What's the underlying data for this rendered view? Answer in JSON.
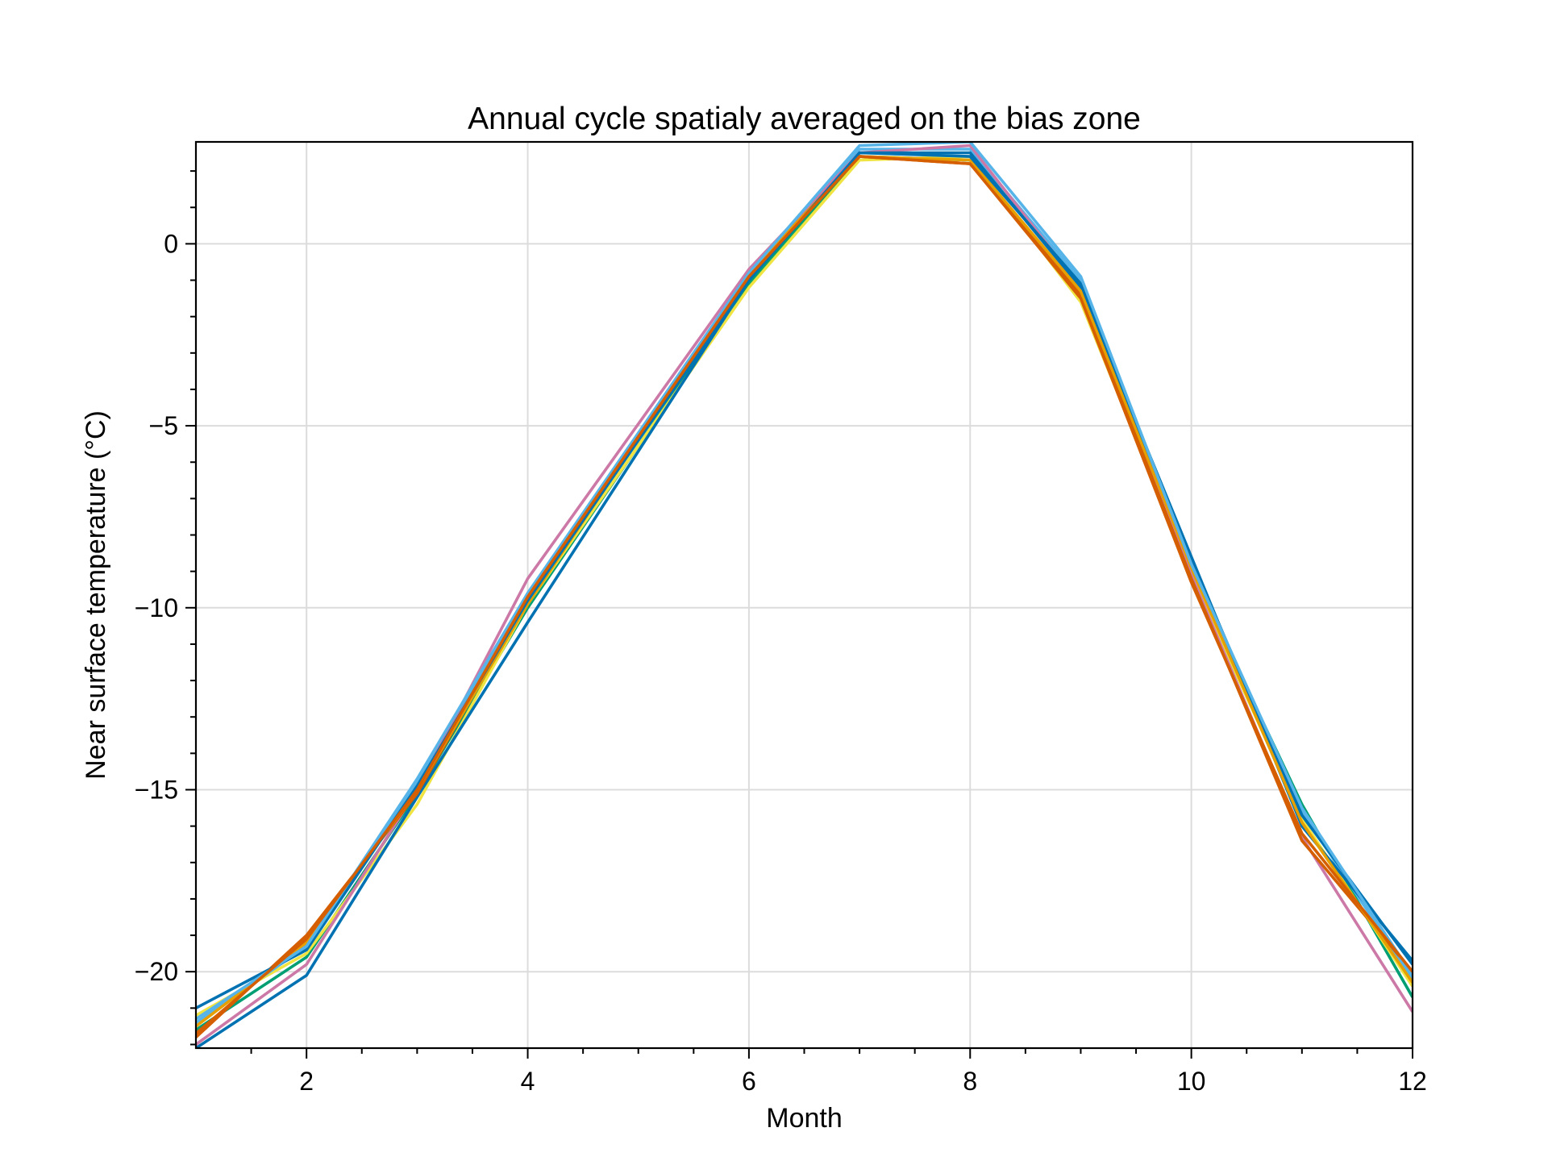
{
  "chart_data": {
    "type": "line",
    "title": "Annual cycle spatialy averaged on the bias zone",
    "xlabel": "Month",
    "ylabel": "Near surface temperature (°C)",
    "xlim": [
      1,
      12
    ],
    "ylim": [
      -22.1,
      2.8
    ],
    "xticks": [
      2,
      4,
      6,
      8,
      10,
      12
    ],
    "xtick_labels": [
      "2",
      "4",
      "6",
      "8",
      "10",
      "12"
    ],
    "yticks": [
      0,
      -5,
      -10,
      -15,
      -20
    ],
    "ytick_labels": [
      "0",
      "−5",
      "−10",
      "−15",
      "−20"
    ],
    "grid": true,
    "legend": "none",
    "series": [
      {
        "color": "#009E73",
        "values": [
          -21.6,
          -19.6,
          -15.1,
          -10.0,
          -1.1,
          2.4,
          2.3,
          -1.4,
          -9.0,
          -15.4,
          -20.7
        ]
      },
      {
        "color": "#F0E442",
        "values": [
          -21.2,
          -19.5,
          -15.4,
          -9.9,
          -1.2,
          2.3,
          2.4,
          -1.6,
          -9.1,
          -15.8,
          -20.4
        ]
      },
      {
        "color": "#56B4E9",
        "values": [
          -21.4,
          -19.3,
          -14.8,
          -9.7,
          -0.9,
          2.6,
          2.6,
          -1.0,
          -8.8,
          -15.6,
          -20.2
        ]
      },
      {
        "color": "#CC79A7",
        "values": [
          -22.0,
          -19.8,
          -15.0,
          -9.2,
          -0.7,
          2.5,
          2.7,
          -1.2,
          -9.1,
          -16.3,
          -21.1
        ]
      },
      {
        "color": "#0072B2",
        "values": [
          -22.1,
          -20.1,
          -15.2,
          -10.4,
          -1.0,
          2.5,
          2.5,
          -1.2,
          -8.6,
          -16.0,
          -19.7
        ]
      },
      {
        "color": "#D55E00",
        "values": [
          -21.8,
          -19.0,
          -15.1,
          -9.8,
          -0.8,
          2.4,
          2.2,
          -1.4,
          -9.2,
          -16.4,
          -20.0
        ]
      },
      {
        "color": "#E69F00",
        "values": [
          -21.5,
          -19.2,
          -15.0,
          -9.9,
          -0.8,
          2.4,
          2.3,
          -1.3,
          -8.9,
          -15.9,
          -20.3
        ]
      },
      {
        "color": "#0072B2",
        "values": [
          -21.0,
          -19.4,
          -14.9,
          -9.8,
          -1.0,
          2.5,
          2.4,
          -1.1,
          -8.7,
          -15.7,
          -19.8
        ]
      },
      {
        "color": "#56B4E9",
        "values": [
          -21.3,
          -19.3,
          -14.7,
          -9.6,
          -0.8,
          2.7,
          2.8,
          -0.9,
          -8.8,
          -15.5,
          -20.1
        ]
      },
      {
        "color": "#D55E00",
        "values": [
          -21.7,
          -19.1,
          -15.0,
          -9.7,
          -0.9,
          2.4,
          2.2,
          -1.5,
          -9.3,
          -16.2,
          -20.0
        ]
      }
    ],
    "x": [
      1,
      2,
      3,
      4,
      6,
      7,
      8,
      9,
      10,
      11,
      12
    ]
  }
}
